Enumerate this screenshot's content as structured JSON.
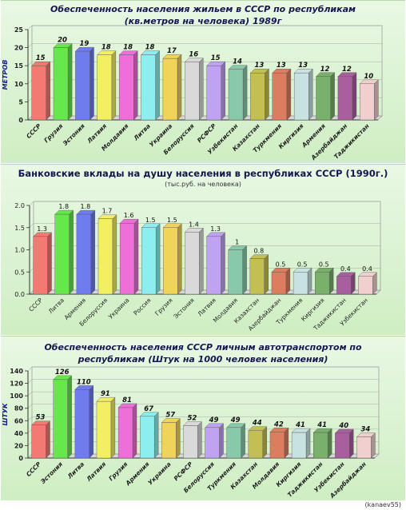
{
  "charts": [
    {
      "title": "Обеспеченность населения жильем в СССР по республикам (кв.метров на человека) 1989г",
      "ylabel": "МЕТРОВ"
    },
    {
      "title": "Банковские вклады на душу населения в республиках СССР (1990г.)",
      "subtitle": "(тыс.руб. на человека)"
    },
    {
      "title": "Обеспеченность населения СССР личным автотранспортом по республикам (Штук на 1000 человек населения)",
      "ylabel": "ШТУК"
    }
  ],
  "credit": "(kanaev55)",
  "chart_data": [
    {
      "type": "bar",
      "title": "Обеспеченность населения жильем в СССР по республикам (кв.метров на человека) 1989г",
      "ylabel": "МЕТРОВ",
      "categories": [
        "СССР",
        "Грузия",
        "Эстония",
        "Латвия",
        "Молдавия",
        "Литва",
        "Украина",
        "Белоруссия",
        "РСФСР",
        "Узбекистан",
        "Казахстан",
        "Туркмения",
        "Киргизия",
        "Армения",
        "Азербайджан",
        "Таджикистан"
      ],
      "values": [
        15,
        20,
        19,
        18,
        18,
        18,
        17,
        16,
        15,
        14,
        13,
        13,
        13,
        12,
        12,
        10
      ],
      "ylim": [
        0,
        25
      ],
      "yticks": [
        0,
        5,
        10,
        15,
        20,
        25
      ],
      "colors": [
        "#f27a72",
        "#66e84c",
        "#6f7cee",
        "#f3ef62",
        "#ef6fd9",
        "#8deeef",
        "#f0d45a",
        "#d9d9d9",
        "#bfa3f2",
        "#88c9aa",
        "#c4bf52",
        "#dd7d5f",
        "#c8e2e2",
        "#79b06b",
        "#a7609d",
        "#f1cfcf"
      ]
    },
    {
      "type": "bar",
      "title": "Банковские вклады на душу населения в республиках СССР (1990г.)",
      "subtitle": "(тыс.руб. на человека)",
      "categories": [
        "СССР",
        "Литва",
        "Армения",
        "Белоруссия",
        "Украина",
        "Россия",
        "Грузия",
        "Эстония",
        "Латвия",
        "Молдавия",
        "Казахстан",
        "Азербайджан",
        "Туркмения",
        "Киргизия",
        "Таджикистан",
        "Узбекистан"
      ],
      "values": [
        1.3,
        1.8,
        1.8,
        1.7,
        1.6,
        1.5,
        1.5,
        1.4,
        1.3,
        1,
        0.8,
        0.5,
        0.5,
        0.5,
        0.4,
        0.4
      ],
      "ylim": [
        0,
        2.0
      ],
      "yticks": [
        "0.0",
        "0.5",
        "1.0",
        "1.5",
        "2.0"
      ],
      "colors": [
        "#f27a72",
        "#66e84c",
        "#6f7cee",
        "#f3ef62",
        "#ef6fd9",
        "#8deeef",
        "#f0d45a",
        "#d9d9d9",
        "#bfa3f2",
        "#88c9aa",
        "#c4bf52",
        "#dd7d5f",
        "#c8e2e2",
        "#79b06b",
        "#a7609d",
        "#f1cfcf"
      ]
    },
    {
      "type": "bar",
      "title": "Обеспеченность населения СССР личным автотранспортом по республикам (Штук на 1000 человек населения)",
      "ylabel": "ШТУК",
      "categories": [
        "СССР",
        "Эстония",
        "Литва",
        "Латвия",
        "Грузия",
        "Армения",
        "Украина",
        "РСФСР",
        "Белоруссия",
        "Туркмения",
        "Казахстан",
        "Молдавия",
        "Киргизия",
        "Таджикистан",
        "Узбекистан",
        "Азербайджан"
      ],
      "values": [
        53,
        126,
        110,
        91,
        81,
        67,
        57,
        52,
        49,
        49,
        44,
        42,
        41,
        41,
        40,
        34
      ],
      "ylim": [
        0,
        140
      ],
      "yticks": [
        0,
        20,
        40,
        60,
        80,
        100,
        120,
        140
      ],
      "colors": [
        "#f27a72",
        "#66e84c",
        "#6f7cee",
        "#f3ef62",
        "#ef6fd9",
        "#8deeef",
        "#f0d45a",
        "#d9d9d9",
        "#bfa3f2",
        "#88c9aa",
        "#c4bf52",
        "#dd7d5f",
        "#c8e2e2",
        "#79b06b",
        "#a7609d",
        "#f1cfcf"
      ]
    }
  ]
}
